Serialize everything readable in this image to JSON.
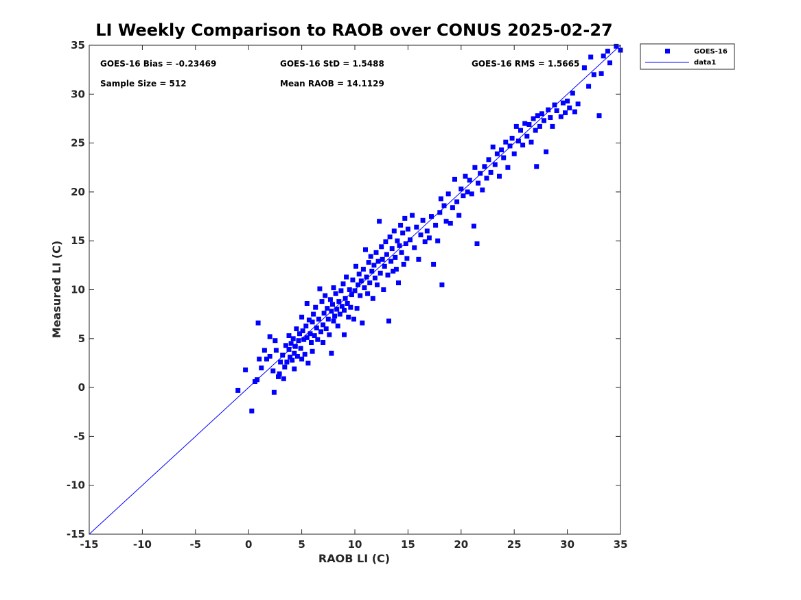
{
  "chart_data": {
    "type": "scatter",
    "title": "LI Weekly Comparison to RAOB over CONUS 2025-02-27",
    "xlabel": "RAOB LI (C)",
    "ylabel": "Measured LI (C)",
    "xlim": [
      -15,
      35
    ],
    "ylim": [
      -15,
      35
    ],
    "xticks": [
      -15,
      -10,
      -5,
      0,
      5,
      10,
      15,
      20,
      25,
      30,
      35
    ],
    "yticks": [
      -15,
      -10,
      -5,
      0,
      5,
      10,
      15,
      20,
      25,
      30,
      35
    ],
    "grid": false,
    "legend_position": "outside-top-right",
    "stats": {
      "bias": "GOES-16 Bias = -0.23469",
      "std": "GOES-16 StD = 1.5488",
      "rms": "GOES-16 RMS = 1.5665",
      "sample": "Sample Size = 512",
      "mean": "Mean RAOB = 14.1129"
    },
    "series": [
      {
        "name": "GOES-16",
        "kind": "scatter",
        "marker": "square",
        "color": "#0000ff",
        "points": [
          [
            -1.0,
            -0.3
          ],
          [
            -0.3,
            1.8
          ],
          [
            0.3,
            -2.4
          ],
          [
            0.6,
            0.6
          ],
          [
            0.8,
            0.8
          ],
          [
            0.9,
            6.6
          ],
          [
            1.0,
            2.9
          ],
          [
            1.2,
            2.0
          ],
          [
            1.5,
            3.8
          ],
          [
            1.7,
            2.9
          ],
          [
            2.0,
            5.2
          ],
          [
            2.0,
            3.2
          ],
          [
            2.3,
            1.7
          ],
          [
            2.4,
            -0.5
          ],
          [
            2.5,
            4.8
          ],
          [
            2.6,
            3.8
          ],
          [
            2.8,
            1.1
          ],
          [
            2.9,
            1.4
          ],
          [
            3.0,
            2.6
          ],
          [
            3.2,
            3.3
          ],
          [
            3.3,
            0.9
          ],
          [
            3.4,
            2.1
          ],
          [
            3.5,
            4.3
          ],
          [
            3.6,
            2.6
          ],
          [
            3.8,
            5.3
          ],
          [
            3.8,
            3.9
          ],
          [
            3.9,
            3.1
          ],
          [
            4.0,
            4.5
          ],
          [
            4.1,
            2.8
          ],
          [
            4.2,
            5.0
          ],
          [
            4.3,
            3.5
          ],
          [
            4.3,
            1.9
          ],
          [
            4.4,
            4.2
          ],
          [
            4.5,
            6.0
          ],
          [
            4.6,
            3.2
          ],
          [
            4.7,
            4.8
          ],
          [
            4.8,
            5.5
          ],
          [
            4.9,
            4.0
          ],
          [
            5.0,
            7.2
          ],
          [
            5.0,
            2.9
          ],
          [
            5.1,
            5.8
          ],
          [
            5.2,
            4.9
          ],
          [
            5.3,
            3.4
          ],
          [
            5.4,
            6.3
          ],
          [
            5.5,
            5.1
          ],
          [
            5.5,
            8.6
          ],
          [
            5.6,
            2.5
          ],
          [
            5.7,
            6.9
          ],
          [
            5.8,
            5.5
          ],
          [
            5.9,
            4.6
          ],
          [
            6.0,
            6.7
          ],
          [
            6.0,
            3.7
          ],
          [
            6.1,
            7.5
          ],
          [
            6.2,
            5.3
          ],
          [
            6.3,
            8.2
          ],
          [
            6.4,
            6.1
          ],
          [
            6.5,
            4.9
          ],
          [
            6.6,
            7.0
          ],
          [
            6.7,
            10.1
          ],
          [
            6.8,
            5.7
          ],
          [
            6.9,
            8.8
          ],
          [
            7.0,
            6.4
          ],
          [
            7.0,
            4.6
          ],
          [
            7.1,
            7.6
          ],
          [
            7.2,
            9.4
          ],
          [
            7.3,
            6.0
          ],
          [
            7.4,
            8.1
          ],
          [
            7.5,
            7.0
          ],
          [
            7.6,
            5.4
          ],
          [
            7.7,
            9.0
          ],
          [
            7.8,
            3.5
          ],
          [
            7.8,
            7.8
          ],
          [
            7.9,
            8.5
          ],
          [
            8.0,
            6.8
          ],
          [
            8.0,
            10.2
          ],
          [
            8.1,
            7.3
          ],
          [
            8.2,
            9.6
          ],
          [
            8.3,
            8.0
          ],
          [
            8.4,
            6.3
          ],
          [
            8.5,
            8.8
          ],
          [
            8.6,
            7.5
          ],
          [
            8.7,
            9.9
          ],
          [
            8.8,
            8.3
          ],
          [
            8.9,
            10.6
          ],
          [
            9.0,
            7.9
          ],
          [
            9.0,
            5.4
          ],
          [
            9.1,
            9.1
          ],
          [
            9.2,
            11.3
          ],
          [
            9.3,
            8.6
          ],
          [
            9.4,
            7.2
          ],
          [
            9.5,
            10.0
          ],
          [
            9.6,
            8.2
          ],
          [
            9.7,
            9.5
          ],
          [
            9.8,
            11.0
          ],
          [
            9.9,
            7.0
          ],
          [
            10.0,
            9.9
          ],
          [
            10.1,
            12.4
          ],
          [
            10.2,
            8.1
          ],
          [
            10.3,
            10.5
          ],
          [
            10.4,
            11.6
          ],
          [
            10.5,
            9.4
          ],
          [
            10.6,
            10.9
          ],
          [
            10.7,
            6.6
          ],
          [
            10.8,
            12.1
          ],
          [
            10.9,
            10.2
          ],
          [
            11.0,
            14.1
          ],
          [
            11.1,
            11.3
          ],
          [
            11.2,
            9.6
          ],
          [
            11.3,
            12.8
          ],
          [
            11.4,
            10.7
          ],
          [
            11.5,
            13.4
          ],
          [
            11.6,
            11.9
          ],
          [
            11.7,
            9.1
          ],
          [
            11.8,
            12.5
          ],
          [
            11.9,
            11.2
          ],
          [
            12.0,
            13.8
          ],
          [
            12.1,
            10.5
          ],
          [
            12.2,
            12.9
          ],
          [
            12.3,
            17.0
          ],
          [
            12.4,
            11.7
          ],
          [
            12.5,
            14.4
          ],
          [
            12.6,
            13.1
          ],
          [
            12.7,
            10.0
          ],
          [
            12.8,
            12.4
          ],
          [
            12.9,
            14.9
          ],
          [
            13.0,
            13.6
          ],
          [
            13.1,
            11.5
          ],
          [
            13.2,
            6.8
          ],
          [
            13.3,
            15.4
          ],
          [
            13.4,
            12.9
          ],
          [
            13.5,
            14.2
          ],
          [
            13.6,
            11.9
          ],
          [
            13.7,
            16.0
          ],
          [
            13.8,
            13.3
          ],
          [
            13.9,
            12.1
          ],
          [
            14.0,
            15.0
          ],
          [
            14.1,
            10.7
          ],
          [
            14.2,
            14.5
          ],
          [
            14.3,
            16.6
          ],
          [
            14.4,
            13.8
          ],
          [
            14.5,
            15.8
          ],
          [
            14.6,
            12.6
          ],
          [
            14.7,
            17.3
          ],
          [
            14.8,
            14.7
          ],
          [
            14.9,
            13.2
          ],
          [
            15.0,
            16.2
          ],
          [
            15.2,
            15.1
          ],
          [
            15.4,
            17.6
          ],
          [
            15.6,
            14.3
          ],
          [
            15.8,
            16.4
          ],
          [
            16.0,
            13.1
          ],
          [
            16.2,
            15.6
          ],
          [
            16.4,
            17.1
          ],
          [
            16.6,
            14.9
          ],
          [
            16.8,
            16.0
          ],
          [
            17.0,
            15.3
          ],
          [
            17.2,
            17.5
          ],
          [
            17.4,
            12.6
          ],
          [
            17.6,
            16.6
          ],
          [
            17.8,
            15.0
          ],
          [
            18.0,
            17.9
          ],
          [
            18.1,
            19.3
          ],
          [
            18.2,
            10.5
          ],
          [
            18.4,
            18.6
          ],
          [
            18.6,
            17.0
          ],
          [
            18.8,
            19.8
          ],
          [
            19.0,
            16.8
          ],
          [
            19.2,
            18.4
          ],
          [
            19.4,
            21.3
          ],
          [
            19.6,
            19.0
          ],
          [
            19.8,
            17.6
          ],
          [
            20.0,
            20.3
          ],
          [
            20.2,
            19.6
          ],
          [
            20.4,
            21.6
          ],
          [
            20.6,
            20.0
          ],
          [
            20.8,
            21.2
          ],
          [
            21.0,
            19.8
          ],
          [
            21.2,
            16.5
          ],
          [
            21.3,
            22.5
          ],
          [
            21.5,
            14.7
          ],
          [
            21.6,
            20.9
          ],
          [
            21.8,
            21.9
          ],
          [
            22.0,
            20.2
          ],
          [
            22.2,
            22.6
          ],
          [
            22.4,
            21.4
          ],
          [
            22.6,
            23.3
          ],
          [
            22.8,
            22.0
          ],
          [
            23.0,
            24.6
          ],
          [
            23.2,
            22.8
          ],
          [
            23.4,
            23.9
          ],
          [
            23.6,
            21.6
          ],
          [
            23.8,
            24.3
          ],
          [
            24.0,
            23.5
          ],
          [
            24.2,
            25.1
          ],
          [
            24.4,
            22.5
          ],
          [
            24.6,
            24.7
          ],
          [
            24.8,
            25.5
          ],
          [
            25.0,
            23.9
          ],
          [
            25.2,
            26.7
          ],
          [
            25.4,
            25.2
          ],
          [
            25.6,
            26.3
          ],
          [
            25.8,
            24.8
          ],
          [
            26.0,
            27.0
          ],
          [
            26.2,
            25.7
          ],
          [
            26.4,
            26.9
          ],
          [
            26.6,
            25.1
          ],
          [
            26.8,
            27.5
          ],
          [
            27.0,
            26.3
          ],
          [
            27.1,
            22.6
          ],
          [
            27.2,
            27.8
          ],
          [
            27.4,
            26.7
          ],
          [
            27.6,
            28.0
          ],
          [
            27.8,
            27.3
          ],
          [
            28.0,
            24.1
          ],
          [
            28.2,
            28.4
          ],
          [
            28.4,
            27.6
          ],
          [
            28.6,
            26.7
          ],
          [
            28.8,
            28.9
          ],
          [
            29.0,
            28.3
          ],
          [
            29.4,
            27.7
          ],
          [
            29.6,
            29.1
          ],
          [
            29.8,
            28.1
          ],
          [
            30.0,
            29.3
          ],
          [
            30.2,
            28.6
          ],
          [
            30.5,
            30.1
          ],
          [
            30.7,
            28.2
          ],
          [
            31.0,
            29.0
          ],
          [
            31.6,
            32.7
          ],
          [
            32.0,
            30.8
          ],
          [
            32.2,
            33.8
          ],
          [
            32.5,
            32.0
          ],
          [
            33.0,
            27.8
          ],
          [
            33.2,
            32.1
          ],
          [
            33.4,
            33.9
          ],
          [
            33.8,
            34.4
          ],
          [
            34.0,
            33.2
          ],
          [
            34.6,
            34.9
          ],
          [
            35.0,
            34.5
          ]
        ]
      },
      {
        "name": "data1",
        "kind": "line",
        "color": "#0000ff",
        "x": [
          -15,
          35
        ],
        "y": [
          -15,
          35
        ]
      }
    ]
  }
}
